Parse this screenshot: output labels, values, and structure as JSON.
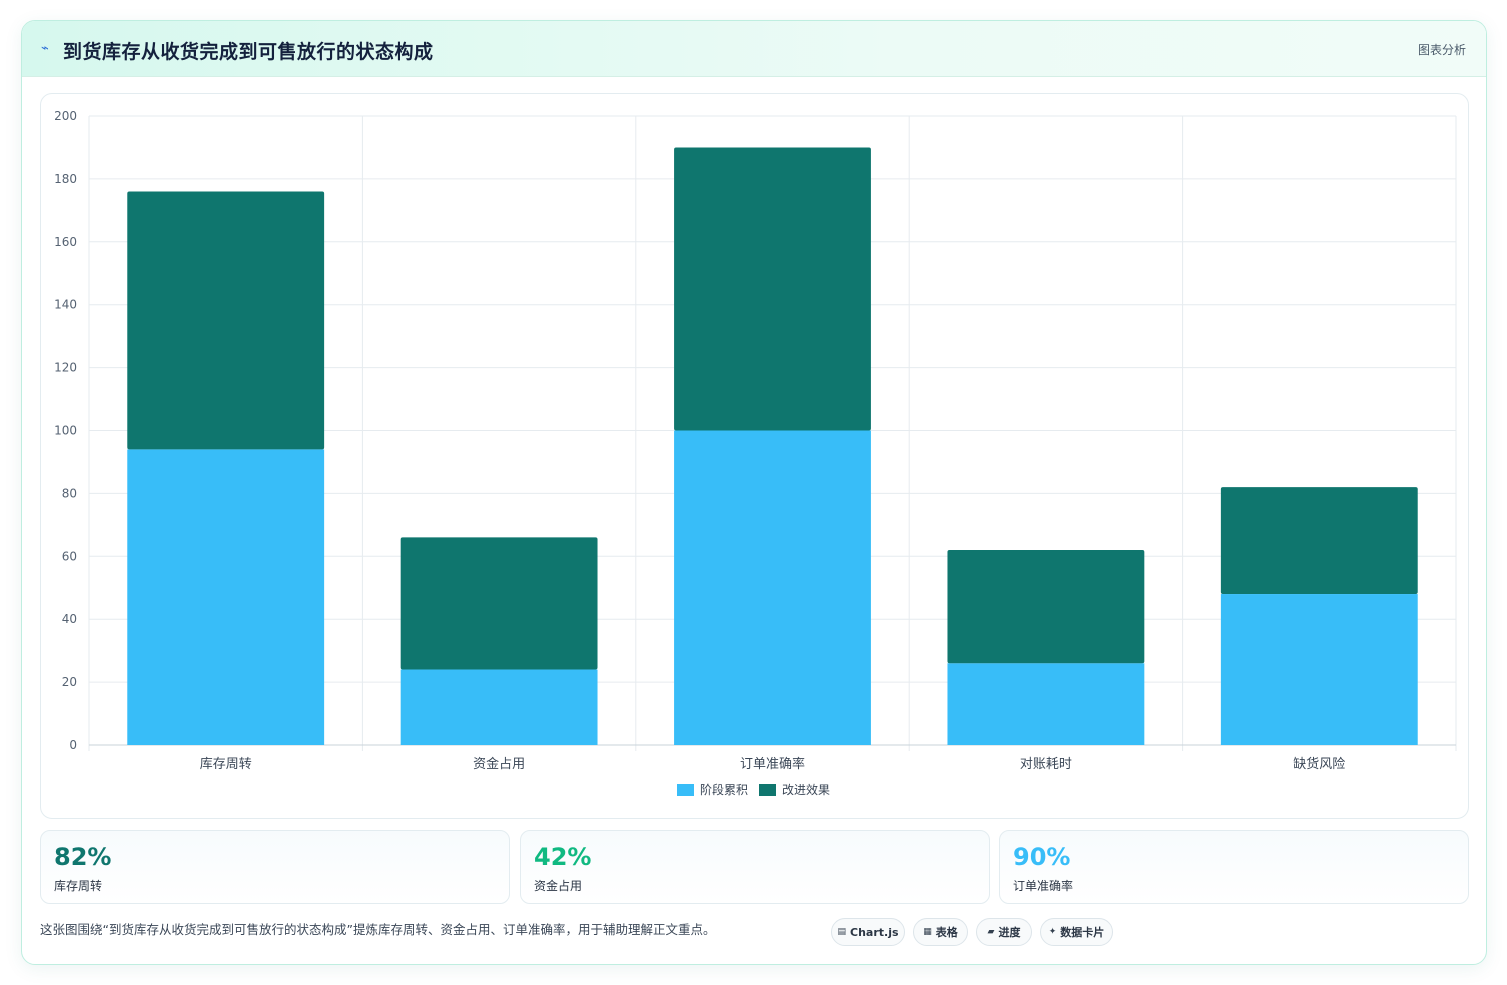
{
  "header": {
    "icon": "pulse-icon",
    "title": "到货库存从收货完成到可售放行的状态构成",
    "link": "图表分析"
  },
  "chart_data": {
    "type": "bar",
    "stacked": true,
    "categories": [
      "库存周转",
      "资金占用",
      "订单准确率",
      "对账耗时",
      "缺货风险"
    ],
    "series": [
      {
        "name": "阶段累积",
        "values": [
          94,
          24,
          100,
          26,
          48
        ],
        "color": "#38bdf8"
      },
      {
        "name": "改进效果",
        "values": [
          82,
          42,
          90,
          36,
          34
        ],
        "color": "#0f766e"
      }
    ],
    "ylim": [
      0,
      200
    ],
    "yticks": [
      0,
      20,
      40,
      60,
      80,
      100,
      120,
      140,
      160,
      180,
      200
    ],
    "grid": true,
    "legend": "bottom-center"
  },
  "stats": [
    {
      "value": "82%",
      "label": "库存周转",
      "color": "#0f766e"
    },
    {
      "value": "42%",
      "label": "资金占用",
      "color": "#10b981"
    },
    {
      "value": "90%",
      "label": "订单准确率",
      "color": "#38bdf8"
    }
  ],
  "footer": {
    "text": "这张图围绕“到货库存从收货完成到可售放行的状态构成”提炼库存周转、资金占用、订单准确率，用于辅助理解正文重点。",
    "tags": [
      {
        "icon": "▤",
        "label": "Chart.js"
      },
      {
        "icon": "▦",
        "label": "表格"
      },
      {
        "icon": "▰",
        "label": "进度"
      },
      {
        "icon": "✦",
        "label": "数据卡片"
      }
    ]
  }
}
